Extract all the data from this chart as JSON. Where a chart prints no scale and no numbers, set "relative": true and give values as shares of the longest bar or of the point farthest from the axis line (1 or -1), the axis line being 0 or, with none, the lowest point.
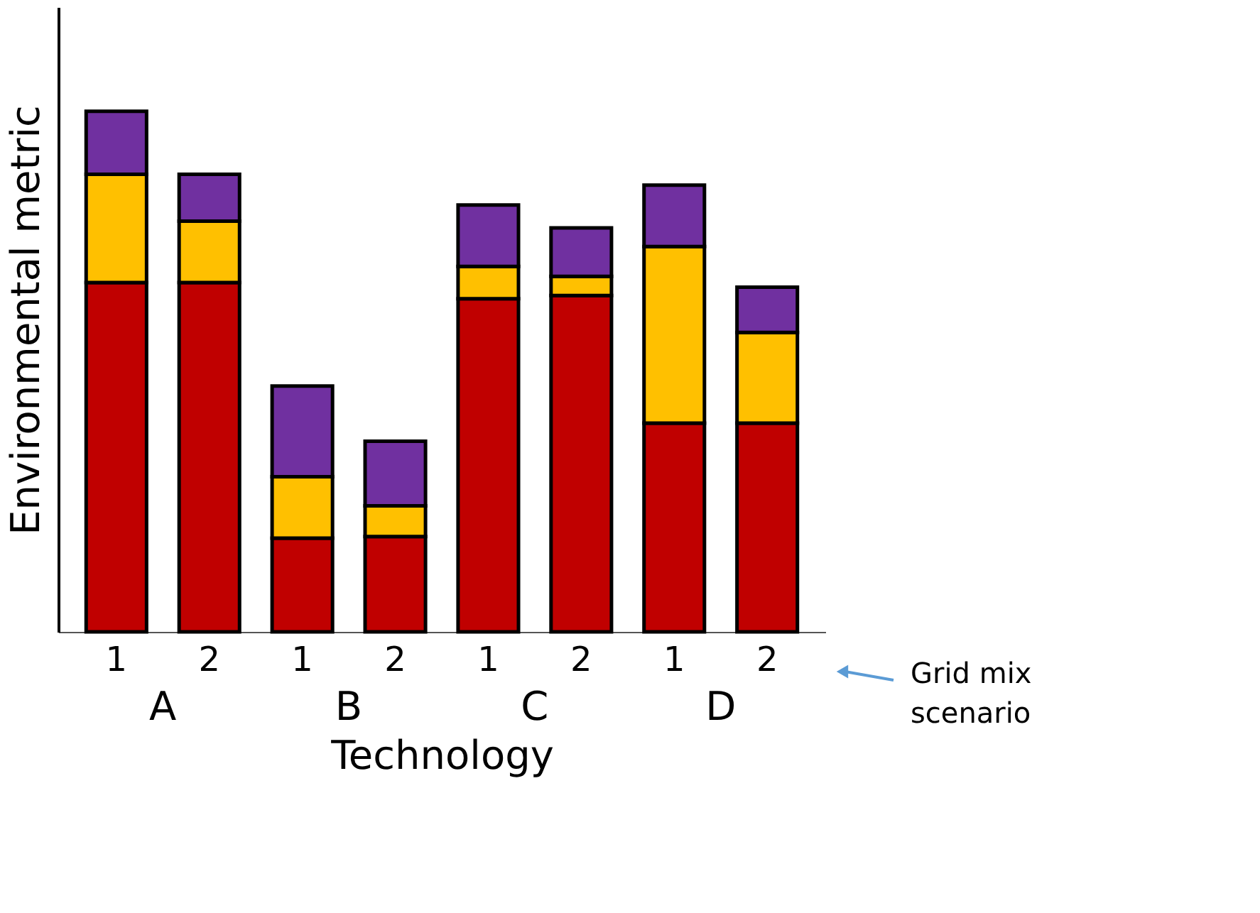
{
  "chart_data": {
    "type": "bar",
    "stacked": true,
    "relative": true,
    "xlabel": "Technology",
    "ylabel": "Environmental metric",
    "categories": [
      "1",
      "2",
      "1",
      "2",
      "1",
      "2",
      "1",
      "2"
    ],
    "series": [
      {
        "color": "#c00000",
        "values": [
          0.671,
          0.671,
          0.18,
          0.183,
          0.64,
          0.646,
          0.401,
          0.401
        ]
      },
      {
        "color": "#ffc000",
        "values": [
          0.208,
          0.118,
          0.118,
          0.059,
          0.062,
          0.037,
          0.339,
          0.174
        ]
      },
      {
        "color": "#7030a0",
        "values": [
          0.121,
          0.09,
          0.174,
          0.124,
          0.118,
          0.093,
          0.118,
          0.087
        ]
      }
    ],
    "annotations": [
      "A",
      "B",
      "C",
      "D",
      "Grid mix scenario"
    ],
    "grid": false
  }
}
